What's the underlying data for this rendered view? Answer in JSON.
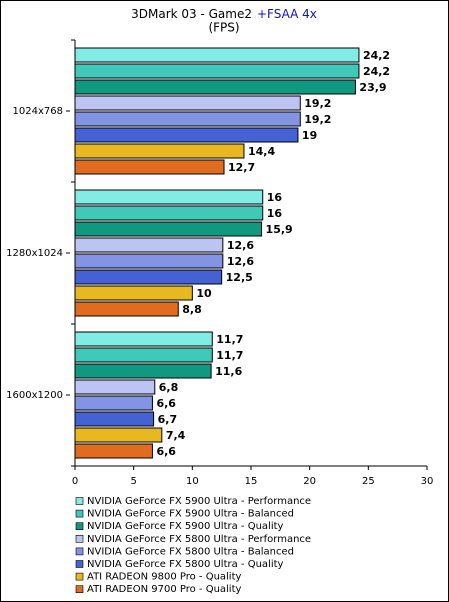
{
  "chart_data": {
    "type": "bar",
    "orientation": "horizontal",
    "title": "3DMark 03 - Game2",
    "title_highlight": "+FSAA 4x",
    "subtitle": "(FPS)",
    "categories": [
      "1024x768",
      "1280x1024",
      "1600x1200"
    ],
    "series": [
      {
        "name": "NVIDIA GeForce FX 5900 Ultra - Performance",
        "color": "#80ece4",
        "values": [
          24.2,
          16,
          11.7
        ],
        "value_labels": [
          "24,2",
          "16",
          "11,7"
        ]
      },
      {
        "name": "NVIDIA GeForce FX 5900 Ultra - Balanced",
        "color": "#40c8b8",
        "values": [
          24.2,
          16,
          11.7
        ],
        "value_labels": [
          "24,2",
          "16",
          "11,7"
        ]
      },
      {
        "name": "NVIDIA GeForce FX 5900 Ultra - Quality",
        "color": "#109880",
        "values": [
          23.9,
          15.9,
          11.6
        ],
        "value_labels": [
          "23,9",
          "15,9",
          "11,6"
        ]
      },
      {
        "name": "NVIDIA GeForce FX 5800 Ultra - Performance",
        "color": "#bcc4f4",
        "values": [
          19.2,
          12.6,
          6.8
        ],
        "value_labels": [
          "19,2",
          "12,6",
          "6,8"
        ]
      },
      {
        "name": "NVIDIA GeForce FX 5800 Ultra - Balanced",
        "color": "#8494e4",
        "values": [
          19.2,
          12.6,
          6.6
        ],
        "value_labels": [
          "19,2",
          "12,6",
          "6,6"
        ]
      },
      {
        "name": "NVIDIA GeForce FX 5800 Ultra - Quality",
        "color": "#4462d4",
        "values": [
          19,
          12.5,
          6.7
        ],
        "value_labels": [
          "19",
          "12,5",
          "6,7"
        ]
      },
      {
        "name": "ATI RADEON 9800 Pro - Quality",
        "color": "#e8b820",
        "values": [
          14.4,
          10,
          7.4
        ],
        "value_labels": [
          "14,4",
          "10",
          "7,4"
        ]
      },
      {
        "name": "ATI RADEON 9700 Pro - Quality",
        "color": "#e06c20",
        "values": [
          12.7,
          8.8,
          6.6
        ],
        "value_labels": [
          "12,7",
          "8,8",
          "6,6"
        ]
      }
    ],
    "xlim": [
      0,
      30
    ],
    "xticks": [
      0,
      5,
      10,
      15,
      20,
      25,
      30
    ],
    "grid": false
  }
}
